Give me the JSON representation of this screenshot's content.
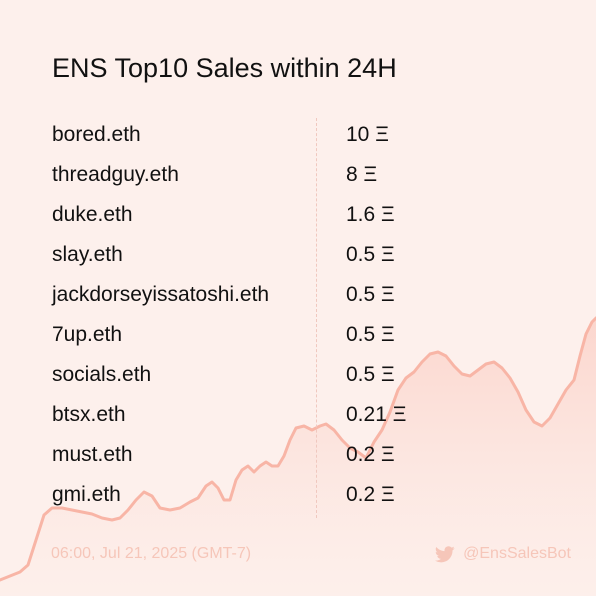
{
  "title": "ENS Top10 Sales within 24H",
  "sales": [
    {
      "name": "bored.eth",
      "price": "10 Ξ"
    },
    {
      "name": "threadguy.eth",
      "price": "8 Ξ"
    },
    {
      "name": "duke.eth",
      "price": "1.6 Ξ"
    },
    {
      "name": "slay.eth",
      "price": "0.5 Ξ"
    },
    {
      "name": "jackdorseyissatoshi.eth",
      "price": "0.5 Ξ"
    },
    {
      "name": "7up.eth",
      "price": "0.5 Ξ"
    },
    {
      "name": "socials.eth",
      "price": "0.5 Ξ"
    },
    {
      "name": "btsx.eth",
      "price": "0.21 Ξ"
    },
    {
      "name": "must.eth",
      "price": "0.2 Ξ"
    },
    {
      "name": "gmi.eth",
      "price": "0.2 Ξ"
    }
  ],
  "footer": {
    "timestamp": "06:00, Jul 21, 2025 (GMT-7)",
    "handle": "@EnsSalesBot"
  },
  "colors": {
    "background": "#fdf0ec",
    "line": "#f8b5a6",
    "fill": "#fbd9d1",
    "footer_text": "#f6c6b9",
    "text": "#111111"
  },
  "icons": {
    "footer": "twitter-bird-icon"
  }
}
